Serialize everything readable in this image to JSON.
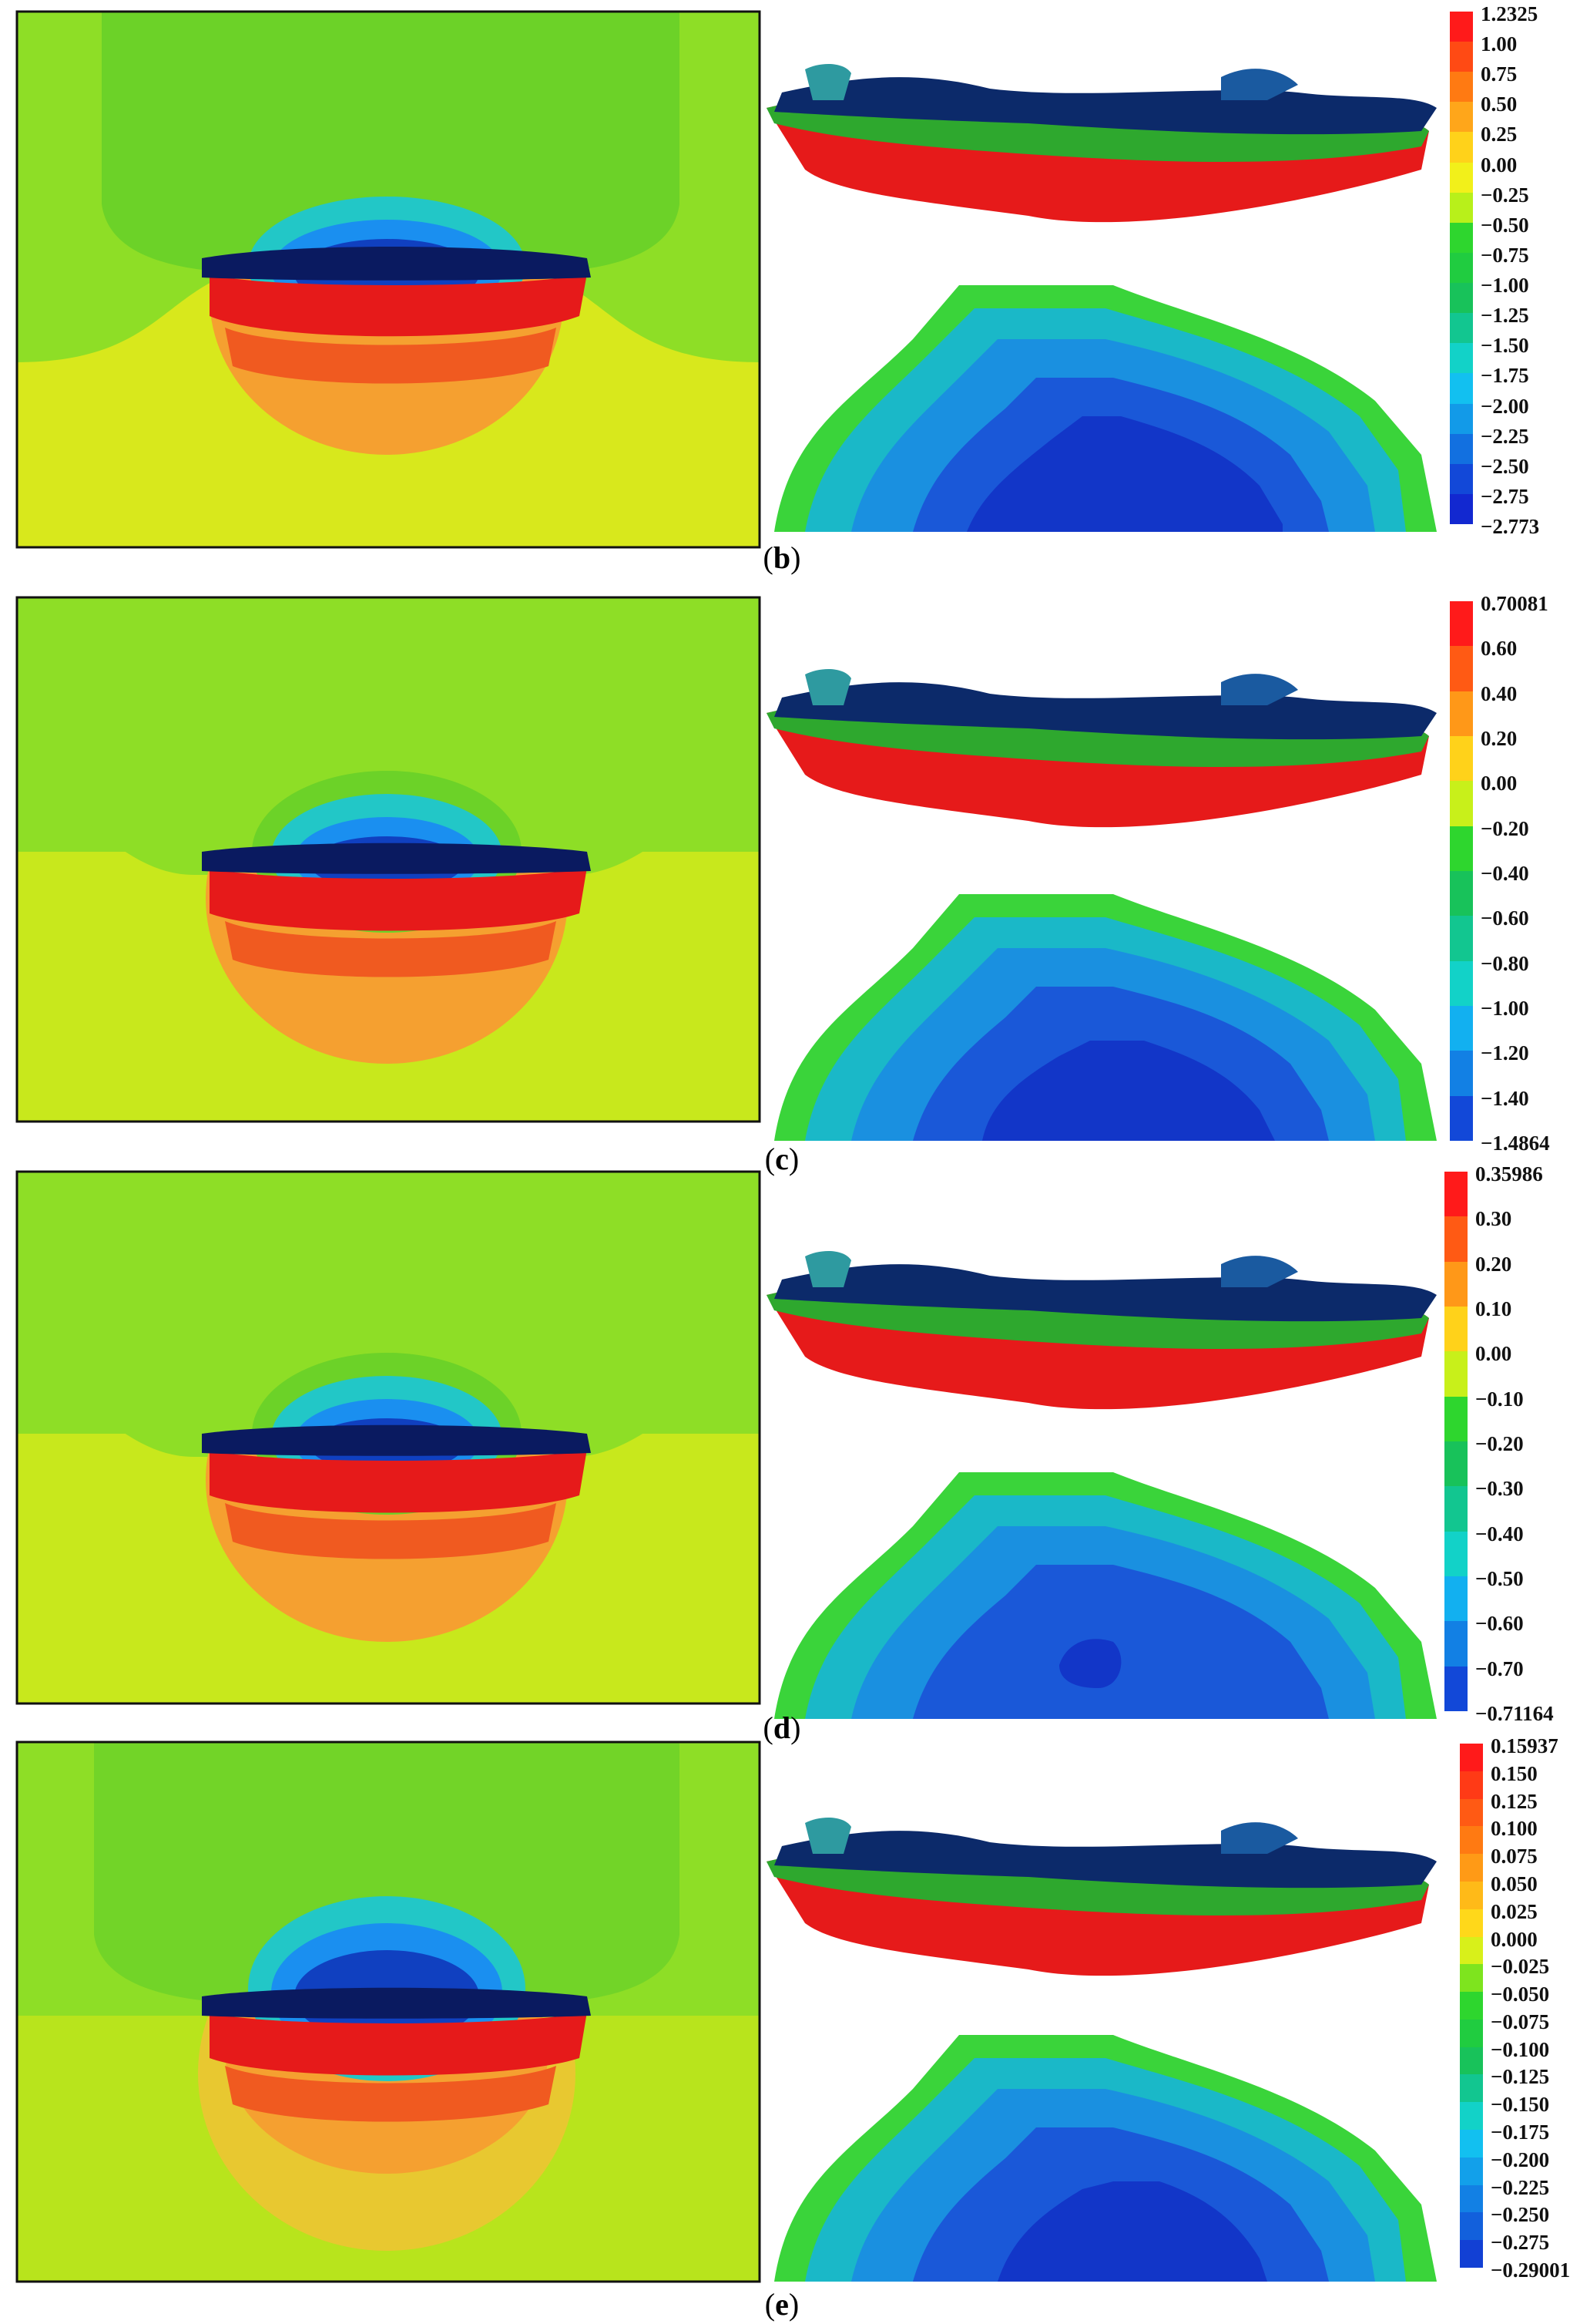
{
  "panels": [
    {
      "label": "b",
      "ticks": [
        "1.2325",
        "1.00",
        "0.75",
        "0.50",
        "0.25",
        "0.00",
        "−0.25",
        "−0.50",
        "−0.75",
        "−1.00",
        "−1.25",
        "−1.50",
        "−1.75",
        "−2.00",
        "−2.25",
        "−2.50",
        "−2.75",
        "−2.773"
      ],
      "colors": [
        "#ff1a1a",
        "#ff4a14",
        "#ff7a12",
        "#ffa61a",
        "#ffd21a",
        "#f2f01a",
        "#b8f01a",
        "#2ed62e",
        "#20cc40",
        "#18c25a",
        "#12c690",
        "#12d2c8",
        "#12c0f0",
        "#129ae8",
        "#1270e0",
        "#1248d8",
        "#1228d0"
      ]
    },
    {
      "label": "c",
      "ticks": [
        "0.70081",
        "0.60",
        "0.40",
        "0.20",
        "0.00",
        "−0.20",
        "−0.40",
        "−0.60",
        "−0.80",
        "−1.00",
        "−1.20",
        "−1.40",
        "−1.4864"
      ],
      "colors": [
        "#ff1a1a",
        "#ff5a14",
        "#ff9818",
        "#ffd21a",
        "#c8f01a",
        "#2ed62e",
        "#18c25a",
        "#12c690",
        "#12d2c8",
        "#12b0f0",
        "#1280e4",
        "#1248d8"
      ]
    },
    {
      "label": "d",
      "ticks": [
        "0.35986",
        "0.30",
        "0.20",
        "0.10",
        "0.00",
        "−0.10",
        "−0.20",
        "−0.30",
        "−0.40",
        "−0.50",
        "−0.60",
        "−0.70",
        "−0.71164"
      ],
      "colors": [
        "#ff1a1a",
        "#ff5a14",
        "#ff9818",
        "#ffd21a",
        "#c8f01a",
        "#2ed62e",
        "#18c25a",
        "#12c690",
        "#12d2c8",
        "#12b0f0",
        "#1280e4",
        "#1248d8"
      ]
    },
    {
      "label": "e",
      "ticks": [
        "0.15937",
        "0.150",
        "0.125",
        "0.100",
        "0.075",
        "0.050",
        "0.025",
        "0.000",
        "−0.025",
        "−0.050",
        "−0.075",
        "−0.100",
        "−0.125",
        "−0.150",
        "−0.175",
        "−0.200",
        "−0.225",
        "−0.250",
        "−0.275",
        "−0.29001"
      ],
      "colors": [
        "#ff1a1a",
        "#ff3a16",
        "#ff5a14",
        "#ff7a12",
        "#ff9a16",
        "#ffba18",
        "#ffd81a",
        "#d8f01a",
        "#7ee41e",
        "#2ed62e",
        "#20cc40",
        "#18c25a",
        "#12c690",
        "#12d2c8",
        "#12c0f0",
        "#12a0ea",
        "#1280e4",
        "#1260dc",
        "#1240d4"
      ]
    }
  ]
}
